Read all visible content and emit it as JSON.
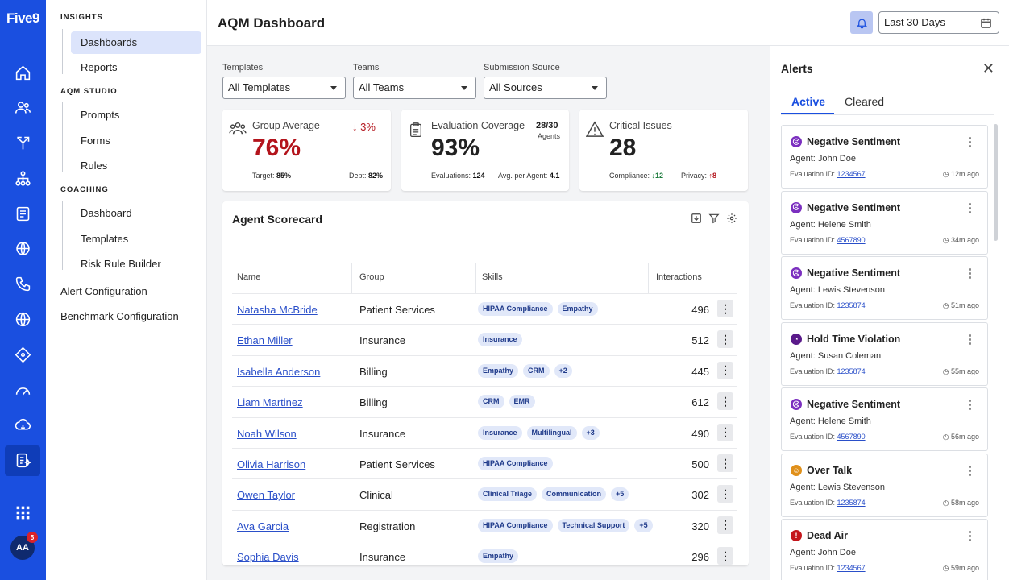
{
  "app": {
    "logo": "Five9",
    "avatar_initials": "AA",
    "avatar_badge": "5"
  },
  "nav": {
    "insights": "INSIGHTS",
    "dashboards": "Dashboards",
    "reports": "Reports",
    "aqm_studio": "AQM STUDIO",
    "prompts": "Prompts",
    "forms": "Forms",
    "rules": "Rules",
    "coaching": "COACHING",
    "coaching_dashboard": "Dashboard",
    "templates": "Templates",
    "risk_rule_builder": "Risk Rule Builder",
    "alert_configuration": "Alert Configuration",
    "benchmark_configuration": "Benchmark Configuration"
  },
  "header": {
    "title": "AQM Dashboard",
    "date_range": "Last 30 Days"
  },
  "filters": {
    "templates_label": "Templates",
    "templates_value": "All Templates",
    "teams_label": "Teams",
    "teams_value": "All Teams",
    "source_label": "Submission Source",
    "source_value": "All Sources"
  },
  "kpis": {
    "group_average": {
      "label": "Group Average",
      "value": "76%",
      "delta": "3%",
      "target_label": "Target:",
      "target": "85%",
      "dept_label": "Dept:",
      "dept": "82%"
    },
    "coverage": {
      "label": "Evaluation Coverage",
      "value": "93%",
      "ratio": "28/30",
      "agents": "Agents",
      "evals_label": "Evaluations:",
      "evals": "124",
      "avg_label": "Avg. per Agent:",
      "avg": "4.1"
    },
    "critical": {
      "label": "Critical Issues",
      "value": "28",
      "compliance_label": "Compliance:",
      "compliance": "12",
      "privacy_label": "Privacy:",
      "privacy": "8"
    }
  },
  "scorecard": {
    "title": "Agent Scorecard",
    "columns": {
      "name": "Name",
      "group": "Group",
      "skills": "Skills",
      "interactions": "Interactions"
    },
    "rows": [
      {
        "name": "Natasha McBride",
        "group": "Patient Services",
        "skills": [
          "HIPAA Compliance",
          "Empathy"
        ],
        "interactions": "496"
      },
      {
        "name": "Ethan Miller",
        "group": "Insurance",
        "skills": [
          "Insurance"
        ],
        "interactions": "512"
      },
      {
        "name": "Isabella Anderson",
        "group": "Billing",
        "skills": [
          "Empathy",
          "CRM",
          "+2"
        ],
        "interactions": "445"
      },
      {
        "name": "Liam Martinez",
        "group": "Billing",
        "skills": [
          "CRM",
          "EMR"
        ],
        "interactions": "612"
      },
      {
        "name": "Noah Wilson",
        "group": "Insurance",
        "skills": [
          "Insurance",
          "Multilingual",
          "+3"
        ],
        "interactions": "490"
      },
      {
        "name": "Olivia Harrison",
        "group": "Patient Services",
        "skills": [
          "HIPAA Compliance"
        ],
        "interactions": "500"
      },
      {
        "name": "Owen Taylor",
        "group": "Clinical",
        "skills": [
          "Clinical Triage",
          "Communication",
          "+5"
        ],
        "interactions": "302"
      },
      {
        "name": "Ava Garcia",
        "group": "Registration",
        "skills": [
          "HIPAA Compliance",
          "Technical Support",
          "+5"
        ],
        "interactions": "320"
      },
      {
        "name": "Sophia Davis",
        "group": "Insurance",
        "skills": [
          "Empathy"
        ],
        "interactions": "296"
      }
    ]
  },
  "alerts": {
    "title": "Alerts",
    "tab_active": "Active",
    "tab_cleared": "Cleared",
    "agent_label": "Agent:",
    "eval_label": "Evaluation ID:",
    "items": [
      {
        "title": "Negative Sentiment",
        "agent": "John Doe",
        "eval_id": "1234567",
        "time": "12m ago",
        "color": "#7b2fbf"
      },
      {
        "title": "Negative Sentiment",
        "agent": "Helene Smith",
        "eval_id": "4567890",
        "time": "34m ago",
        "color": "#7b2fbf"
      },
      {
        "title": "Negative Sentiment",
        "agent": "Lewis Stevenson",
        "eval_id": "1235874",
        "time": "51m ago",
        "color": "#7b2fbf"
      },
      {
        "title": "Hold Time Violation",
        "agent": "Susan Coleman",
        "eval_id": "1235874",
        "time": "55m ago",
        "color": "#5a1a8a"
      },
      {
        "title": "Negative Sentiment",
        "agent": "Helene Smith",
        "eval_id": "4567890",
        "time": "56m ago",
        "color": "#7b2fbf"
      },
      {
        "title": "Over Talk",
        "agent": "Lewis Stevenson",
        "eval_id": "1235874",
        "time": "58m ago",
        "color": "#e0901a"
      },
      {
        "title": "Dead Air",
        "agent": "John Doe",
        "eval_id": "1234567",
        "time": "59m ago",
        "color": "#c4161c"
      }
    ]
  },
  "colors": {
    "brand": "#1a4fe0",
    "red": "#b3141c",
    "green": "#1a7a3a"
  }
}
